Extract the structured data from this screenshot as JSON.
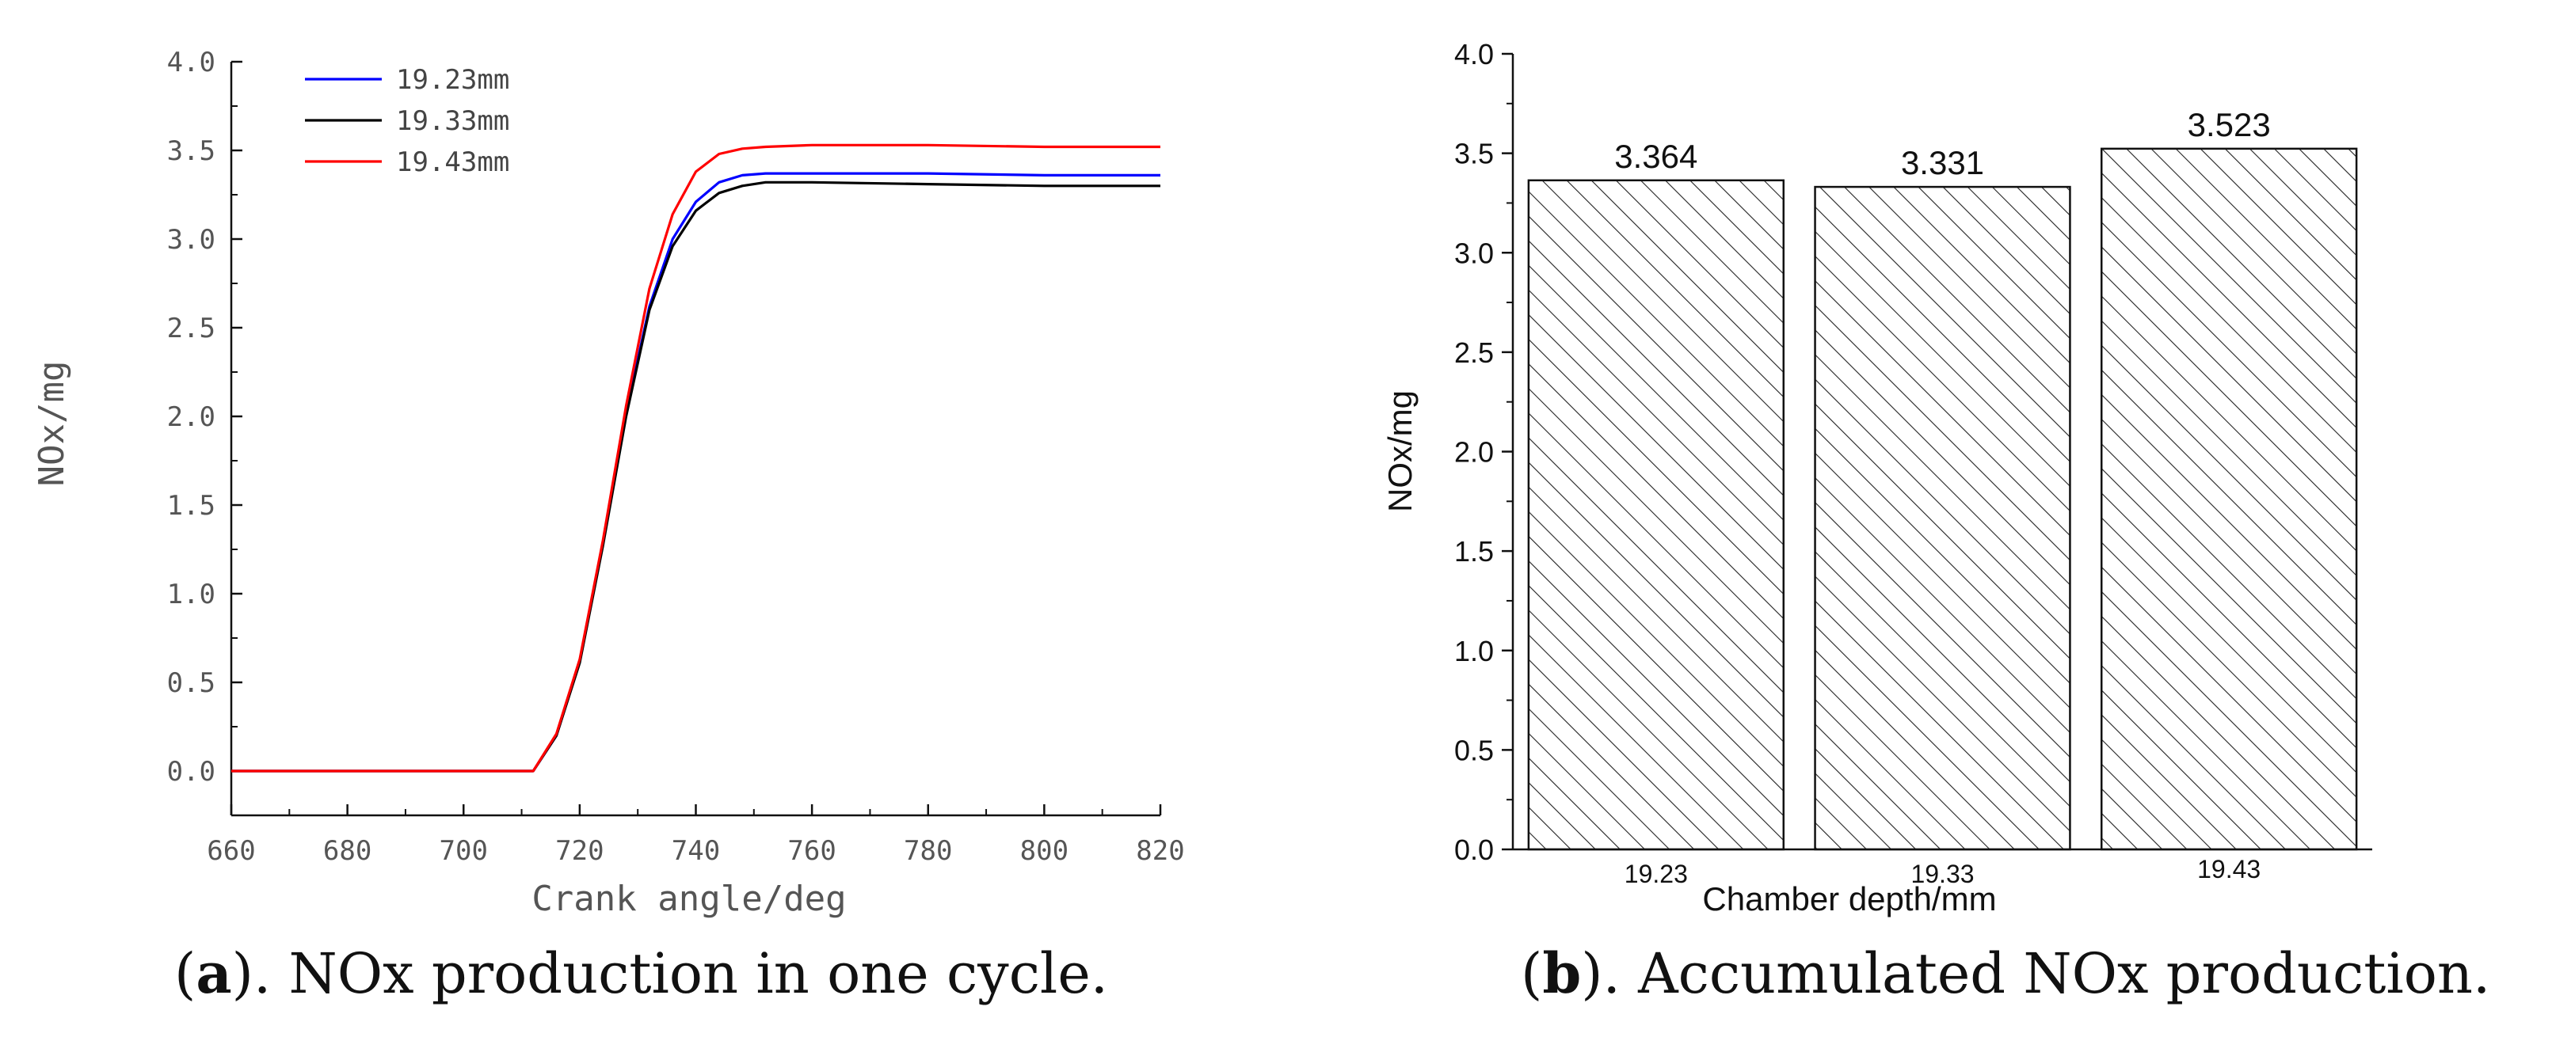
{
  "chart_data": [
    {
      "type": "line",
      "xlabel": "Crank angle/deg",
      "ylabel": "NOx/mg",
      "xlim": [
        660,
        820
      ],
      "ylim": [
        -0.25,
        4.0
      ],
      "xticks": [
        "660",
        "680",
        "700",
        "720",
        "740",
        "760",
        "780",
        "800",
        "820"
      ],
      "yticks": [
        "0.0",
        "0.5",
        "1.0",
        "1.5",
        "2.0",
        "2.5",
        "3.0",
        "3.5",
        "4.0"
      ],
      "legend_position": "top-left",
      "grid": false,
      "series": [
        {
          "name": "19.23mm",
          "color": "#0000ff",
          "x": [
            660,
            712,
            716,
            720,
            724,
            728,
            732,
            736,
            740,
            744,
            748,
            752,
            760,
            780,
            800,
            820
          ],
          "values": [
            0,
            0,
            0.2,
            0.62,
            1.28,
            2.02,
            2.62,
            3.0,
            3.21,
            3.32,
            3.36,
            3.37,
            3.37,
            3.37,
            3.36,
            3.36
          ]
        },
        {
          "name": "19.33mm",
          "color": "#000000",
          "x": [
            660,
            712,
            716,
            720,
            724,
            728,
            732,
            736,
            740,
            744,
            748,
            752,
            760,
            780,
            800,
            820
          ],
          "values": [
            0,
            0,
            0.2,
            0.61,
            1.27,
            2.0,
            2.6,
            2.96,
            3.16,
            3.26,
            3.3,
            3.32,
            3.32,
            3.31,
            3.3,
            3.3
          ]
        },
        {
          "name": "19.43mm",
          "color": "#ff0000",
          "x": [
            660,
            712,
            716,
            720,
            724,
            728,
            732,
            736,
            740,
            744,
            748,
            752,
            760,
            780,
            800,
            820
          ],
          "values": [
            0,
            0,
            0.21,
            0.63,
            1.3,
            2.06,
            2.72,
            3.14,
            3.38,
            3.48,
            3.51,
            3.52,
            3.53,
            3.53,
            3.52,
            3.52
          ]
        }
      ]
    },
    {
      "type": "bar",
      "xlabel": "Chamber depth/mm",
      "ylabel": "NOx/mg",
      "categories": [
        "19.23",
        "19.33",
        "19.43"
      ],
      "values": [
        3.364,
        3.331,
        3.523
      ],
      "data_labels": [
        "3.364",
        "3.331",
        "3.523"
      ],
      "ylim": [
        0,
        4.0
      ],
      "yticks": [
        "0.0",
        "0.5",
        "1.0",
        "1.5",
        "2.0",
        "2.5",
        "3.0",
        "3.5",
        "4.0"
      ],
      "bar_fill": "diagonal-hatch",
      "grid": false
    }
  ],
  "captions": {
    "a_letter": "a",
    "a_text": "). NOx production in one cycle.",
    "b_letter": "b",
    "b_text": "). Accumulated NOx production."
  }
}
